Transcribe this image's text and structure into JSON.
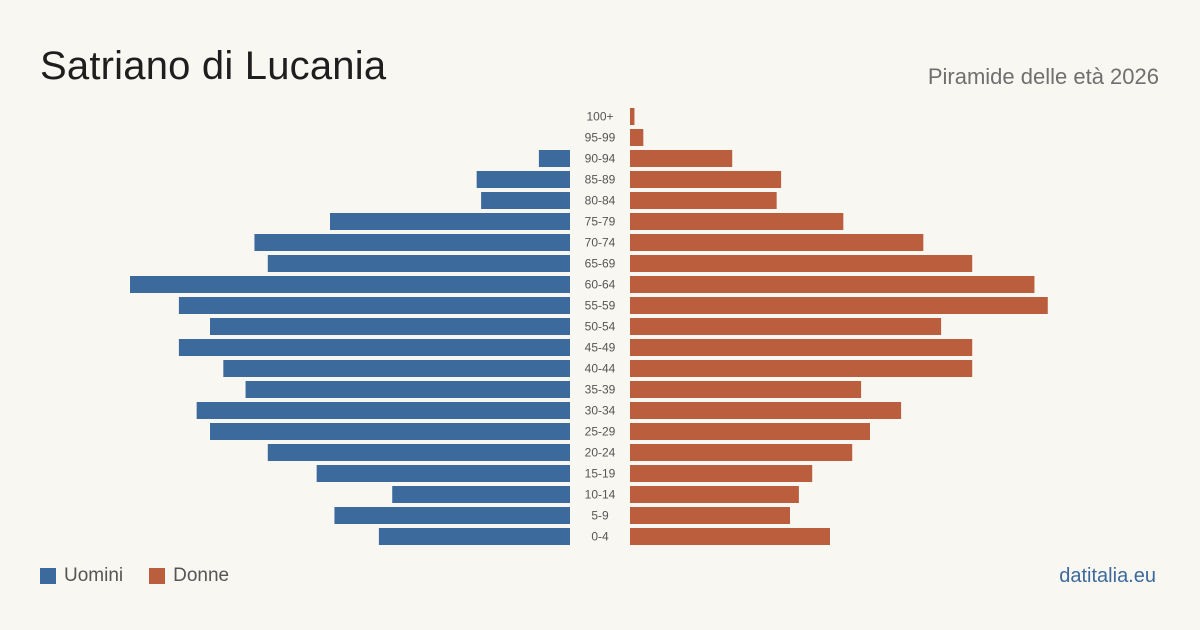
{
  "header": {
    "title": "Satriano di Lucania",
    "subtitle": "Piramide delle età 2026"
  },
  "legend": {
    "men_label": "Uomini",
    "women_label": "Donne"
  },
  "brand": "datitalia.eu",
  "colors": {
    "men": "#3c6a9c",
    "women": "#bb5e3e",
    "brand": "#3c6a9c",
    "background": "#f9f7f2"
  },
  "chart_data": {
    "type": "bar",
    "categories": [
      "0-4",
      "5-9",
      "10-14",
      "15-19",
      "20-24",
      "25-29",
      "30-34",
      "35-39",
      "40-44",
      "45-49",
      "50-54",
      "55-59",
      "60-64",
      "65-69",
      "70-74",
      "75-79",
      "80-84",
      "85-89",
      "90-94",
      "95-99",
      "100+"
    ],
    "series": [
      {
        "name": "Uomini",
        "values": [
          43,
          53,
          40,
          57,
          68,
          81,
          84,
          73,
          78,
          88,
          81,
          88,
          99,
          68,
          71,
          54,
          20,
          21,
          7,
          0,
          0
        ]
      },
      {
        "name": "Donne",
        "values": [
          45,
          36,
          38,
          41,
          50,
          54,
          61,
          52,
          77,
          77,
          70,
          94,
          91,
          77,
          66,
          48,
          33,
          34,
          23,
          3,
          1
        ]
      }
    ]
  }
}
